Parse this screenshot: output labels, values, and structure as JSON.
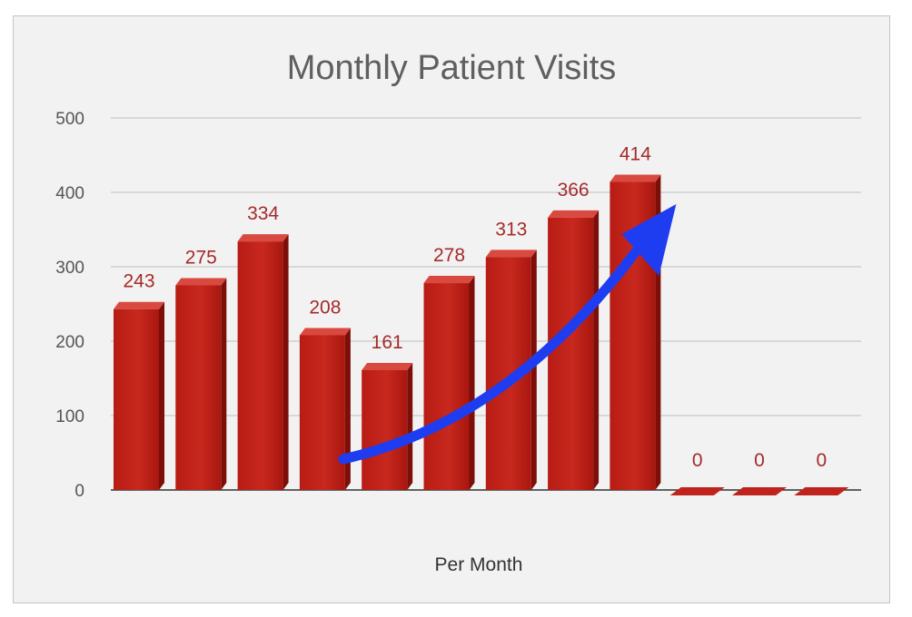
{
  "chart_data": {
    "type": "bar",
    "title": "Monthly Patient Visits",
    "xlabel": "Per Month",
    "ylabel": "",
    "ylim": [
      0,
      500
    ],
    "yticks": [
      0,
      100,
      200,
      300,
      400,
      500
    ],
    "grid": true,
    "legend": "none",
    "categories": [
      "",
      "",
      "",
      "",
      "",
      "",
      "",
      "",
      "",
      "",
      "",
      ""
    ],
    "values": [
      243,
      275,
      334,
      208,
      161,
      278,
      313,
      366,
      414,
      0,
      0,
      0
    ],
    "data_labels": [
      "243",
      "275",
      "334",
      "208",
      "161",
      "278",
      "313",
      "366",
      "414",
      "0",
      "0",
      "0"
    ],
    "bar_color": "#c0231b",
    "label_color": "#a52a2a",
    "annotation": {
      "type": "arrow",
      "color": "#1f3df0",
      "from_category_index": 3,
      "to_category_index": 8,
      "description": "upward trend arrow"
    }
  }
}
